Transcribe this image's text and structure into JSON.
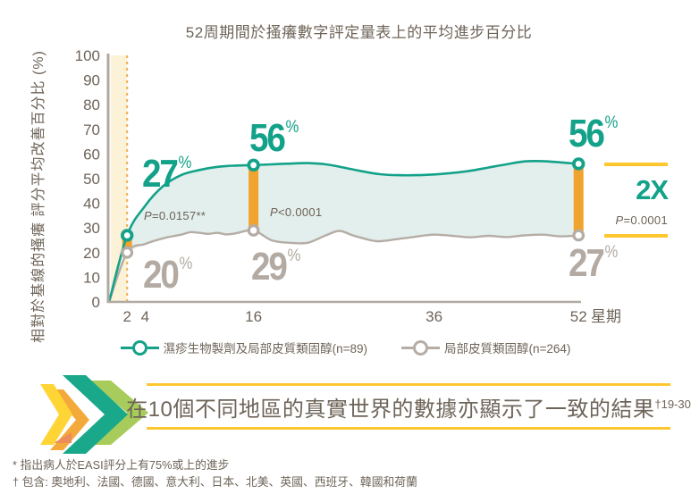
{
  "colors": {
    "green": "#13a289",
    "gray_line": "#b5ada5",
    "gray_label": "#b3aba3",
    "orange_bar": "#f0a32f",
    "yellow_line": "#ffc72f",
    "pale_band": "#fbf2d8",
    "dotted_line": "#f2ae4e",
    "area_fill": "#e3efec",
    "axis": "#b1a9a1",
    "text": "#6e6459",
    "chevron_yellow": "#ffd435",
    "chevron_orange": "#f4a93b",
    "chevron_salmon": "#ed8b5a",
    "chevron_teal": "#19a98a",
    "chevron_lightgreen": "#a8cc5b"
  },
  "chart_data": {
    "type": "line",
    "title": "52周期間於搔癢數字評定量表上的平均進步百分比",
    "ylabel": "相對於基線的搔癢 評分平均改善百分比 (%)",
    "xlabel": "星期",
    "pct_symbol": "%",
    "xlim": [
      0,
      52
    ],
    "ylim": [
      0,
      100
    ],
    "x_ticks": [
      2,
      4,
      16,
      36,
      52
    ],
    "y_ticks": [
      100,
      90,
      80,
      70,
      60,
      50,
      40,
      30,
      20,
      10,
      0
    ],
    "grid": false,
    "legend_position": "bottom",
    "highlight_band_weeks": [
      0,
      2
    ],
    "comparison_weeks": [
      2,
      16,
      52
    ],
    "series": [
      {
        "name": "濕疹生物製劑及局部皮質類固醇(n=89)",
        "color": "#13a289",
        "x": [
          0,
          2,
          4,
          6,
          8,
          10,
          12,
          14,
          16,
          18,
          20,
          22,
          24,
          26,
          28,
          30,
          32,
          34,
          36,
          38,
          40,
          42,
          44,
          46,
          48,
          50,
          52
        ],
        "values": [
          0,
          27,
          39,
          47,
          51.5,
          53.5,
          54.8,
          55.3,
          55.5,
          55.8,
          56.1,
          56.3,
          55.8,
          54.5,
          53,
          51.8,
          51.4,
          51.4,
          51.7,
          52.3,
          53.2,
          54.5,
          55.8,
          57,
          57.1,
          56.6,
          56
        ],
        "key_points": [
          {
            "week": 2,
            "value": 27
          },
          {
            "week": 16,
            "value": 56
          },
          {
            "week": 52,
            "value": 56
          }
        ]
      },
      {
        "name": "局部皮質類固醇(n=264)",
        "color": "#b5ada5",
        "x": [
          0,
          2,
          4,
          6,
          8,
          9,
          10,
          11,
          12,
          13,
          14,
          16,
          18,
          20,
          22,
          24,
          25.5,
          27,
          29,
          30,
          32,
          34,
          36,
          38,
          40,
          42,
          44,
          46,
          48,
          50,
          52
        ],
        "values": [
          0,
          20,
          23.5,
          25.8,
          27.3,
          28.3,
          28,
          27.6,
          28,
          27.4,
          27.8,
          29,
          25,
          24,
          24,
          27,
          28.8,
          27,
          25,
          24.6,
          25.5,
          26.5,
          27.3,
          26.8,
          26.2,
          26.8,
          26.3,
          27,
          27.3,
          26.6,
          27
        ],
        "key_points": [
          {
            "week": 2,
            "value": 20
          },
          {
            "week": 16,
            "value": 29
          },
          {
            "week": 52,
            "value": 27
          }
        ]
      }
    ],
    "p_values": [
      {
        "week": 2,
        "text": "P=0.0157**"
      },
      {
        "week": 16,
        "text": "P<0.0001"
      }
    ],
    "right_annotation": {
      "multiplier": "2X",
      "p_text": "P=0.0001"
    }
  },
  "banner": {
    "text": "在10個不同地區的真實世界的數據亦顯示了一致的結果",
    "superscript": "†19-30"
  },
  "footnotes": {
    "asterisk": "* 指出病人於EASI評分上有75%或上的進步",
    "dagger": "† 包含: 奧地利、法國、德國、意大利、日本、北美、英國、西班牙、韓國和荷蘭"
  }
}
